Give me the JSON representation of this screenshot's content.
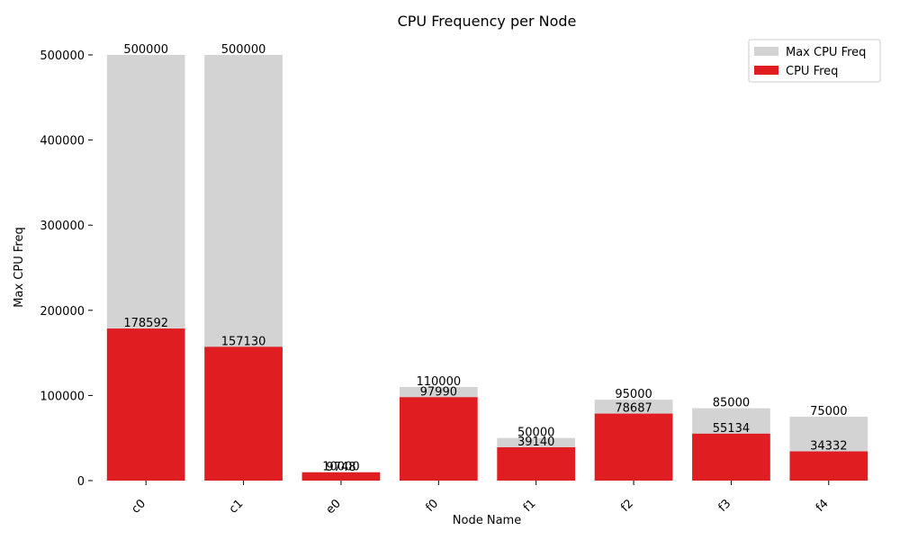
{
  "chart_data": {
    "type": "bar",
    "title": "CPU Frequency per Node",
    "xlabel": "Node Name",
    "ylabel": "Max CPU Freq",
    "categories": [
      "c0",
      "c1",
      "e0",
      "f0",
      "f1",
      "f2",
      "f3",
      "f4"
    ],
    "series": [
      {
        "name": "Max CPU Freq",
        "values": [
          500000,
          500000,
          10000,
          110000,
          50000,
          95000,
          85000,
          75000
        ],
        "color": "#d3d3d3"
      },
      {
        "name": "CPU Freq",
        "values": [
          178592,
          157130,
          9748,
          97990,
          39140,
          78687,
          55134,
          34332
        ],
        "color": "#e01e21"
      }
    ],
    "ylim": [
      0,
      500000
    ],
    "yticks": [
      0,
      100000,
      200000,
      300000,
      400000,
      500000
    ],
    "grid": false,
    "legend": "top-right",
    "overlay": true
  }
}
